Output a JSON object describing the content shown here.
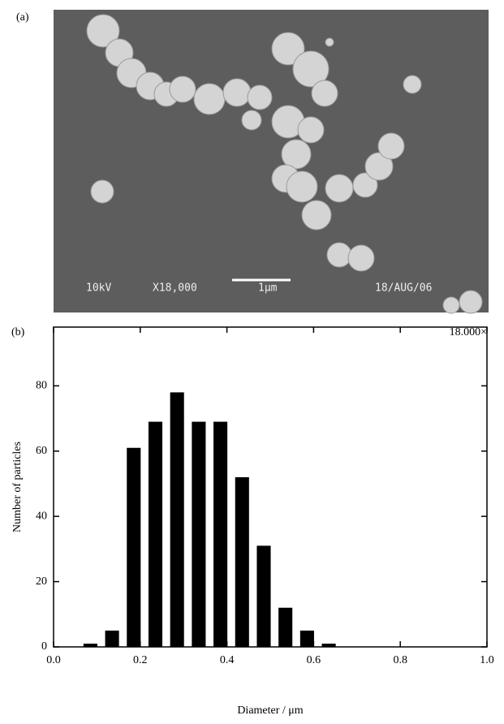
{
  "panel_a": {
    "label": "(a)",
    "scale_text": "18.000×",
    "overlay": {
      "voltage": "10kV",
      "magnification": "X18,000",
      "scale_bar": "1μm",
      "date": "18/AUG/06"
    }
  },
  "chart_data": {
    "type": "bar",
    "panel_label": "(b)",
    "x_label": "Diameter / μm",
    "y_label": "Number of particles",
    "x": [
      0.085,
      0.135,
      0.185,
      0.235,
      0.285,
      0.335,
      0.385,
      0.435,
      0.485,
      0.535,
      0.585,
      0.635
    ],
    "values": [
      1,
      5,
      61,
      69,
      78,
      69,
      69,
      52,
      31,
      12,
      5,
      1
    ],
    "color": "#000000",
    "xlim": [
      0,
      1.0
    ],
    "xticks": [
      {
        "value": 0,
        "label": "0.0"
      },
      0.2,
      0.4,
      0.6,
      0.8,
      {
        "value": 1.0,
        "label": "1.0"
      }
    ],
    "ylim": [
      0,
      98
    ],
    "yticks": [
      0,
      20,
      40,
      60,
      80
    ]
  }
}
